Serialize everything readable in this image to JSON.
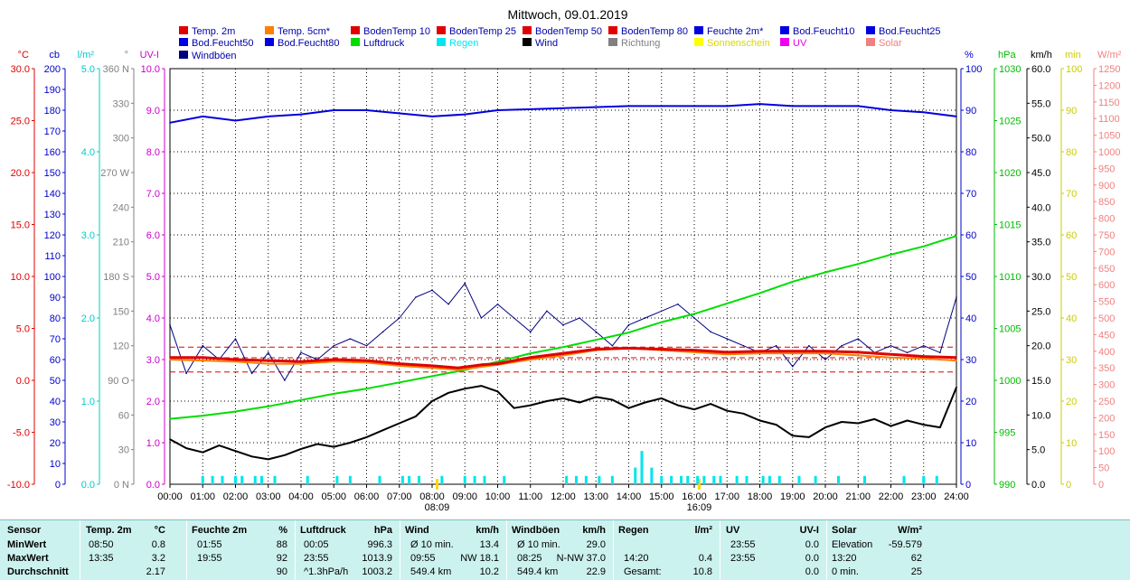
{
  "title": "Mittwoch, 09.01.2019",
  "legend": [
    {
      "label": "Temp. 2m",
      "color": "#e00000"
    },
    {
      "label": "Temp. 5cm*",
      "color": "#ff7f00"
    },
    {
      "label": "BodenTemp 10",
      "color": "#e00000"
    },
    {
      "label": "BodenTemp 25",
      "color": "#e00000"
    },
    {
      "label": "BodenTemp 50",
      "color": "#e00000"
    },
    {
      "label": "BodenTemp 80",
      "color": "#e00000"
    },
    {
      "label": "Feuchte 2m*",
      "color": "#0000e0"
    },
    {
      "label": "Bod.Feucht10",
      "color": "#0000e0"
    },
    {
      "label": "Bod.Feucht25",
      "color": "#0000e0"
    },
    {
      "label": "Bod.Feucht50",
      "color": "#0000e0"
    },
    {
      "label": "Bod.Feucht80",
      "color": "#0000e0"
    },
    {
      "label": "Luftdruck",
      "color": "#00dd00"
    },
    {
      "label": "Regen",
      "color": "#00e5ee"
    },
    {
      "label": "Wind",
      "color": "#000000"
    },
    {
      "label": "Richtung",
      "color": "#808080"
    },
    {
      "label": "Sonnenschein",
      "color": "#ffff00"
    },
    {
      "label": "UV",
      "color": "#ee00ee"
    },
    {
      "label": "Solar",
      "color": "#f08080"
    },
    {
      "label": "Windböen",
      "color": "#000080"
    }
  ],
  "axes_left": [
    {
      "unit": "°C",
      "color": "#e00000",
      "ticks": [
        "30.0",
        "25.0",
        "20.0",
        "15.0",
        "10.0",
        "5.0",
        "0.0",
        "-5.0",
        "-10.0"
      ]
    },
    {
      "unit": "cb",
      "color": "#0000cc",
      "ticks": [
        "200",
        "190",
        "180",
        "170",
        "160",
        "150",
        "140",
        "130",
        "120",
        "110",
        "100",
        "90",
        "80",
        "70",
        "60",
        "50",
        "40",
        "30",
        "20",
        "10",
        "0"
      ]
    },
    {
      "unit": "l/m²",
      "color": "#00cccc",
      "ticks": [
        "5.0",
        "4.0",
        "3.0",
        "2.0",
        "1.0",
        "0.0"
      ]
    },
    {
      "unit": "°",
      "color": "#808080",
      "ticks": [
        "360 N",
        "330",
        "300",
        "270 W",
        "240",
        "210",
        "180 S",
        "150",
        "120",
        "90 O",
        "60",
        "30",
        "0 N"
      ]
    },
    {
      "unit": "UV-I",
      "color": "#cc00cc",
      "ticks": [
        "10.0",
        "9.0",
        "8.0",
        "7.0",
        "6.0",
        "5.0",
        "4.0",
        "3.0",
        "2.0",
        "1.0",
        "0.0"
      ]
    }
  ],
  "axes_right": [
    {
      "unit": "%",
      "color": "#0000cc",
      "ticks": [
        "100",
        "90",
        "80",
        "70",
        "60",
        "50",
        "40",
        "30",
        "20",
        "10",
        "0"
      ]
    },
    {
      "unit": "hPa",
      "color": "#00bb00",
      "ticks": [
        "1030",
        "1025",
        "1020",
        "1015",
        "1010",
        "1005",
        "1000",
        "995",
        "990"
      ]
    },
    {
      "unit": "km/h",
      "color": "#000000",
      "ticks": [
        "60.0",
        "55.0",
        "50.0",
        "45.0",
        "40.0",
        "35.0",
        "30.0",
        "25.0",
        "20.0",
        "15.0",
        "10.0",
        "5.0",
        "0.0"
      ]
    },
    {
      "unit": "min",
      "color": "#cccc00",
      "ticks": [
        "100",
        "90",
        "80",
        "70",
        "60",
        "50",
        "40",
        "30",
        "20",
        "10",
        "0"
      ]
    },
    {
      "unit": "W/m²",
      "color": "#f08080",
      "ticks": [
        "1250",
        "1200",
        "1150",
        "1100",
        "1050",
        "1000",
        "950",
        "900",
        "850",
        "800",
        "750",
        "700",
        "650",
        "600",
        "550",
        "500",
        "450",
        "400",
        "350",
        "300",
        "250",
        "200",
        "150",
        "100",
        "50",
        "0"
      ]
    }
  ],
  "x_ticks": [
    "00:00",
    "01:00",
    "02:00",
    "03:00",
    "04:00",
    "05:00",
    "06:00",
    "07:00",
    "08:00",
    "09:00",
    "10:00",
    "11:00",
    "12:00",
    "13:00",
    "14:00",
    "15:00",
    "16:00",
    "17:00",
    "18:00",
    "19:00",
    "20:00",
    "21:00",
    "22:00",
    "23:00",
    "24:00"
  ],
  "sun_markers": [
    "08:09",
    "16:09"
  ],
  "chart_data": {
    "type": "line",
    "title": "Mittwoch, 09.01.2019",
    "xlabel": "",
    "xlim": [
      0,
      24
    ],
    "series": [
      {
        "name": "Feuchte 2m*",
        "unit": "%",
        "points": [
          [
            0,
            87
          ],
          [
            1,
            88.5
          ],
          [
            2,
            87.5
          ],
          [
            3,
            88.5
          ],
          [
            4,
            89
          ],
          [
            5,
            90
          ],
          [
            6,
            90
          ],
          [
            8,
            88.5
          ],
          [
            9,
            89
          ],
          [
            10,
            90
          ],
          [
            12,
            90.5
          ],
          [
            14,
            91
          ],
          [
            16,
            91
          ],
          [
            17,
            91
          ],
          [
            18,
            91.5
          ],
          [
            19,
            91
          ],
          [
            21,
            91
          ],
          [
            22,
            90
          ],
          [
            23,
            89.5
          ],
          [
            24,
            88.5
          ]
        ]
      },
      {
        "name": "Luftdruck",
        "unit": "hPa",
        "points": [
          [
            0,
            996.3
          ],
          [
            1,
            996.6
          ],
          [
            2,
            997
          ],
          [
            3,
            997.5
          ],
          [
            4,
            998.1
          ],
          [
            5,
            998.7
          ],
          [
            6,
            999.2
          ],
          [
            7,
            999.8
          ],
          [
            8,
            1000.4
          ],
          [
            9,
            1001
          ],
          [
            10,
            1001.8
          ],
          [
            11,
            1002.6
          ],
          [
            12,
            1003.2
          ],
          [
            13,
            1003.9
          ],
          [
            14,
            1004.6
          ],
          [
            15,
            1005.6
          ],
          [
            16,
            1006.4
          ],
          [
            17,
            1007.4
          ],
          [
            18,
            1008.4
          ],
          [
            19,
            1009.5
          ],
          [
            20,
            1010.4
          ],
          [
            21,
            1011.2
          ],
          [
            22,
            1012.1
          ],
          [
            23,
            1012.9
          ],
          [
            24,
            1013.9
          ]
        ]
      },
      {
        "name": "Temp. 2m",
        "unit": "°C",
        "points": [
          [
            0,
            2.2
          ],
          [
            1,
            2.2
          ],
          [
            2,
            2.0
          ],
          [
            3,
            1.9
          ],
          [
            4,
            1.8
          ],
          [
            5,
            2.0
          ],
          [
            6,
            1.9
          ],
          [
            7,
            1.6
          ],
          [
            8,
            1.4
          ],
          [
            8.8,
            1.2
          ],
          [
            9.5,
            1.5
          ],
          [
            10,
            1.6
          ],
          [
            11,
            2.2
          ],
          [
            12,
            2.6
          ],
          [
            13,
            3.0
          ],
          [
            14,
            3.1
          ],
          [
            15,
            3.0
          ],
          [
            16,
            2.9
          ],
          [
            17,
            2.7
          ],
          [
            18,
            2.8
          ],
          [
            19,
            2.8
          ],
          [
            20,
            2.8
          ],
          [
            21,
            2.7
          ],
          [
            22,
            2.5
          ],
          [
            23,
            2.3
          ],
          [
            24,
            2.2
          ]
        ]
      },
      {
        "name": "Temp. 5cm*",
        "unit": "°C",
        "points": [
          [
            0,
            2.0
          ],
          [
            1,
            1.9
          ],
          [
            2,
            1.8
          ],
          [
            3,
            1.6
          ],
          [
            4,
            1.6
          ],
          [
            5,
            1.8
          ],
          [
            6,
            1.7
          ],
          [
            7,
            1.4
          ],
          [
            8,
            1.2
          ],
          [
            8.8,
            1.0
          ],
          [
            9.5,
            1.3
          ],
          [
            10,
            1.5
          ],
          [
            11,
            2.0
          ],
          [
            12,
            2.4
          ],
          [
            13,
            2.9
          ],
          [
            14,
            3.1
          ],
          [
            15,
            2.9
          ],
          [
            16,
            2.7
          ],
          [
            17,
            2.5
          ],
          [
            18,
            2.6
          ],
          [
            19,
            2.6
          ],
          [
            20,
            2.6
          ],
          [
            21,
            2.4
          ],
          [
            22,
            2.2
          ],
          [
            23,
            2.1
          ],
          [
            24,
            1.9
          ]
        ]
      },
      {
        "name": "Wind",
        "unit": "km/h",
        "points": [
          [
            0,
            6.5
          ],
          [
            0.5,
            5.2
          ],
          [
            1,
            4.6
          ],
          [
            1.5,
            5.6
          ],
          [
            2,
            4.8
          ],
          [
            2.5,
            4.0
          ],
          [
            3,
            3.6
          ],
          [
            3.5,
            4.2
          ],
          [
            4,
            5.1
          ],
          [
            4.5,
            5.8
          ],
          [
            5,
            5.4
          ],
          [
            5.5,
            6.0
          ],
          [
            6,
            6.8
          ],
          [
            6.5,
            7.8
          ],
          [
            7,
            8.8
          ],
          [
            7.5,
            9.8
          ],
          [
            8,
            12.0
          ],
          [
            8.5,
            13.2
          ],
          [
            9,
            13.8
          ],
          [
            9.5,
            14.2
          ],
          [
            10,
            13.4
          ],
          [
            10.5,
            11.0
          ],
          [
            11,
            11.4
          ],
          [
            11.5,
            12.0
          ],
          [
            12,
            12.4
          ],
          [
            12.5,
            11.8
          ],
          [
            13,
            12.6
          ],
          [
            13.5,
            12.2
          ],
          [
            14,
            11.0
          ],
          [
            14.5,
            11.8
          ],
          [
            15,
            12.4
          ],
          [
            15.5,
            11.4
          ],
          [
            16,
            10.8
          ],
          [
            16.5,
            11.6
          ],
          [
            17,
            10.6
          ],
          [
            17.5,
            10.2
          ],
          [
            18,
            9.2
          ],
          [
            18.5,
            8.6
          ],
          [
            19,
            7.0
          ],
          [
            19.5,
            6.8
          ],
          [
            20,
            8.2
          ],
          [
            20.5,
            9.0
          ],
          [
            21,
            8.8
          ],
          [
            21.5,
            9.4
          ],
          [
            22,
            8.4
          ],
          [
            22.5,
            9.2
          ],
          [
            23,
            8.6
          ],
          [
            23.5,
            8.2
          ],
          [
            24,
            14.0
          ]
        ]
      },
      {
        "name": "Windböen",
        "unit": "km/h",
        "points": [
          [
            0,
            23
          ],
          [
            0.5,
            16
          ],
          [
            1,
            20
          ],
          [
            1.5,
            18
          ],
          [
            2,
            21
          ],
          [
            2.5,
            16
          ],
          [
            3,
            19
          ],
          [
            3.5,
            15
          ],
          [
            4,
            19
          ],
          [
            4.5,
            18
          ],
          [
            5,
            20
          ],
          [
            5.5,
            21
          ],
          [
            6,
            20
          ],
          [
            6.5,
            22
          ],
          [
            7,
            24
          ],
          [
            7.5,
            27
          ],
          [
            8,
            28
          ],
          [
            8.5,
            26
          ],
          [
            9,
            29
          ],
          [
            9.5,
            24
          ],
          [
            10,
            26
          ],
          [
            10.5,
            24
          ],
          [
            11,
            22
          ],
          [
            11.5,
            25
          ],
          [
            12,
            23
          ],
          [
            12.5,
            24
          ],
          [
            13,
            22
          ],
          [
            13.5,
            20
          ],
          [
            14,
            23
          ],
          [
            14.5,
            24
          ],
          [
            15,
            25
          ],
          [
            15.5,
            26
          ],
          [
            16,
            24
          ],
          [
            16.5,
            22
          ],
          [
            17,
            21
          ],
          [
            17.5,
            20
          ],
          [
            18,
            19
          ],
          [
            18.5,
            20
          ],
          [
            19,
            17
          ],
          [
            19.5,
            20
          ],
          [
            20,
            18
          ],
          [
            20.5,
            20
          ],
          [
            21,
            21
          ],
          [
            21.5,
            19
          ],
          [
            22,
            20
          ],
          [
            22.5,
            19
          ],
          [
            23,
            20
          ],
          [
            23.5,
            19
          ],
          [
            24,
            27
          ]
        ]
      }
    ],
    "rain": {
      "unit": "l/m²",
      "times": [
        1.0,
        1.3,
        1.6,
        2.0,
        2.2,
        2.6,
        2.8,
        3.2,
        4.2,
        5.1,
        5.5,
        6.4,
        7.1,
        7.3,
        7.6,
        8.3,
        9.0,
        9.3,
        9.6,
        10.2,
        12.1,
        12.4,
        12.7,
        13.1,
        13.5,
        14.2,
        14.4,
        14.7,
        15.0,
        15.3,
        15.6,
        15.8,
        16.1,
        16.3,
        16.6,
        16.8,
        17.3,
        17.6,
        18.1,
        18.3,
        18.6,
        19.2,
        19.7,
        20.4,
        21.2,
        22.4,
        23.0,
        23.4
      ],
      "values": [
        0.1,
        0.1,
        0.1,
        0.1,
        0.1,
        0.1,
        0.1,
        0.1,
        0.1,
        0.1,
        0.1,
        0.1,
        0.1,
        0.1,
        0.1,
        0.1,
        0.1,
        0.1,
        0.1,
        0.1,
        0.1,
        0.1,
        0.1,
        0.1,
        0.1,
        0.2,
        0.4,
        0.2,
        0.1,
        0.1,
        0.1,
        0.1,
        0.1,
        0.1,
        0.1,
        0.1,
        0.1,
        0.1,
        0.1,
        0.1,
        0.1,
        0.1,
        0.1,
        0.1,
        0.1,
        0.1,
        0.1,
        0.1
      ]
    },
    "reference_lines": [
      {
        "name": "Temp max",
        "unit": "°C",
        "value": 3.2
      },
      {
        "name": "Temp min",
        "unit": "°C",
        "value": 0.8
      },
      {
        "name": "Temp avg",
        "unit": "°C",
        "value": 2.17
      }
    ]
  },
  "stats": {
    "headers": [
      "Sensor",
      "Temp. 2m",
      "°C",
      "Feuchte 2m",
      "%",
      "Luftdruck",
      "hPa",
      "Wind",
      "km/h",
      "Windböen",
      "km/h",
      "Regen",
      "l/m²",
      "UV",
      "UV-I",
      "Solar",
      "W/m²"
    ],
    "rows": [
      {
        "label": "MinWert",
        "cells": [
          "08:50",
          "0.8",
          "01:55",
          "88",
          "00:05",
          "996.3",
          "Ø 10 min.",
          "13.4",
          "Ø 10 min.",
          "29.0",
          "",
          "",
          "23:55",
          "0.0",
          "Elevation",
          "-59.579"
        ]
      },
      {
        "label": "MaxWert",
        "cells": [
          "13:35",
          "3.2",
          "19:55",
          "92",
          "23:55",
          "1013.9",
          "09:55",
          "NW 18.1",
          "08:25",
          "N-NW 37.0",
          "14:20",
          "0.4",
          "23:55",
          "0.0",
          "13:20",
          "62"
        ]
      },
      {
        "label": "Durchschnitt",
        "cells": [
          "",
          "2.17",
          "",
          "90",
          "^1.3hPa/h",
          "1003.2",
          "549.4 km",
          "10.2",
          "549.4 km",
          "22.9",
          "Gesamt:",
          "10.8",
          "",
          "0.0",
          "0 min.",
          "25"
        ]
      }
    ]
  }
}
